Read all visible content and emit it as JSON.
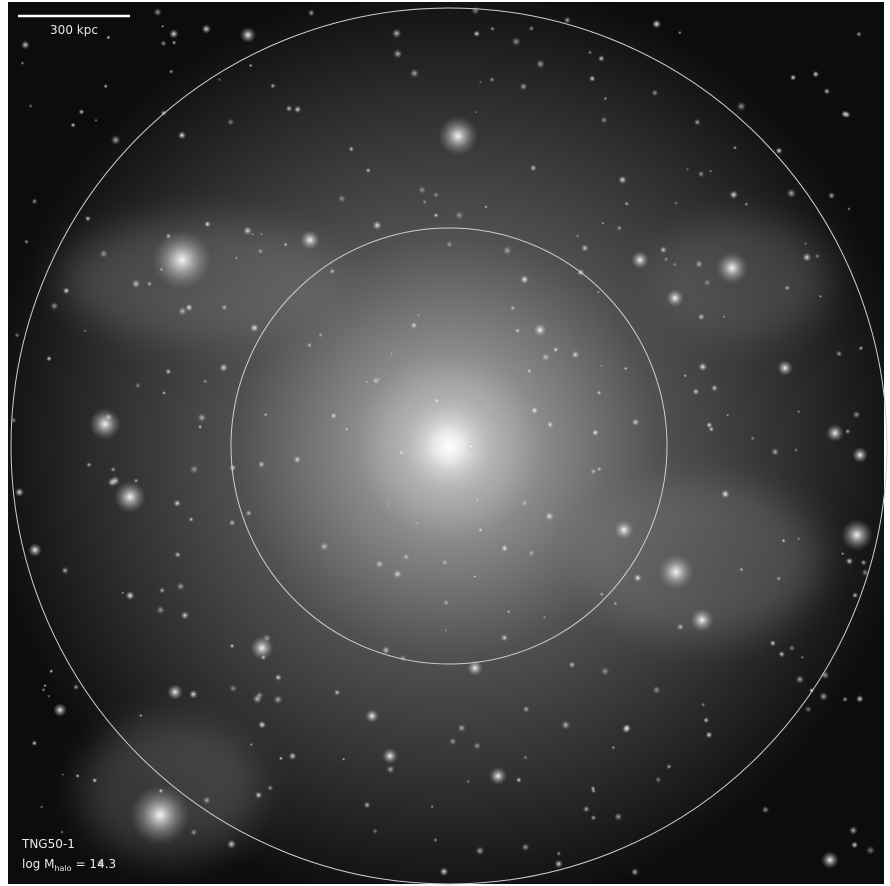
{
  "scale_bar": {
    "label": "300 kpc"
  },
  "simulation": "TNG50-1",
  "mass_label": {
    "text": "log M",
    "subscript": "halo",
    "suffix": "= 14.3"
  }
}
